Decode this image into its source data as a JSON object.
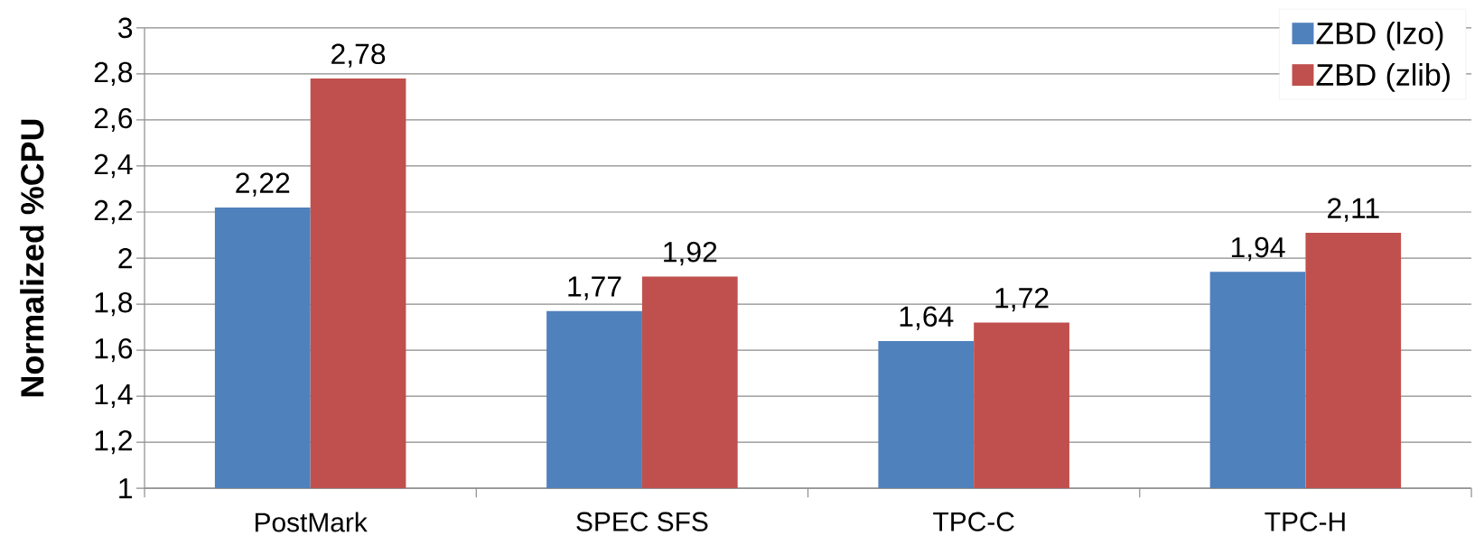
{
  "chart_data": {
    "type": "bar",
    "ylabel": "Normalized %CPU",
    "categories": [
      "PostMark",
      "SPEC SFS",
      "TPC-C",
      "TPC-H"
    ],
    "series": [
      {
        "name": "ZBD (lzo)",
        "color": "#4f81bd",
        "values": [
          2.22,
          1.77,
          1.64,
          1.94
        ],
        "value_labels": [
          "2,22",
          "1,77",
          "1,64",
          "1,94"
        ]
      },
      {
        "name": "ZBD (zlib)",
        "color": "#c0504d",
        "values": [
          2.78,
          1.92,
          1.72,
          2.11
        ],
        "value_labels": [
          "2,78",
          "1,92",
          "1,72",
          "2,11"
        ]
      }
    ],
    "ylim": [
      1,
      3
    ],
    "yticks": [
      1,
      {
        "value": 1.2,
        "label": "1,2"
      },
      {
        "value": 1.4,
        "label": "1,4"
      },
      {
        "value": 1.6,
        "label": "1,6"
      },
      {
        "value": 1.8,
        "label": "1,8"
      },
      2,
      {
        "value": 2.2,
        "label": "2,2"
      },
      {
        "value": 2.4,
        "label": "2,4"
      },
      {
        "value": 2.6,
        "label": "2,6"
      },
      {
        "value": 2.8,
        "label": "2,8"
      },
      3
    ],
    "grid": "y",
    "legend": "top right"
  }
}
